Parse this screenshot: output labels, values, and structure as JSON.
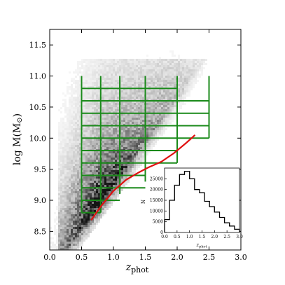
{
  "chart_data": [
    {
      "type": "scatter",
      "title": "",
      "xlabel": "z",
      "xlabel_sub": "phot",
      "ylabel": "log M(M",
      "ylabel_symbol": "⊙",
      "ylabel_close": ")",
      "xlim": [
        0.0,
        3.0
      ],
      "ylim": [
        8.2,
        11.75
      ],
      "xticks": [
        "0.0",
        "0.5",
        "1.0",
        "1.5",
        "2.0",
        "2.5",
        "3.0"
      ],
      "yticks": [
        "8.5",
        "9.0",
        "9.5",
        "10.0",
        "10.5",
        "11.0",
        "11.5"
      ],
      "grid": false,
      "density_description": "grayscale 2D histogram of galaxies, densest near z 0.3-1.2 and log M 8.3-9.5",
      "bin_grid": {
        "color": "#1a8a1a",
        "vertical_x": [
          0.5,
          0.8,
          1.1,
          1.5,
          2.0,
          2.5
        ],
        "vertical_ylow": [
          8.8,
          8.8,
          9.1,
          9.3,
          9.6,
          10.0
        ],
        "vertical_yhigh": 11.0,
        "horizontal_y": [
          8.8,
          9.0,
          9.2,
          9.4,
          9.6,
          9.8,
          10.0,
          10.2,
          10.4,
          10.6,
          10.8
        ],
        "horizontal_xhigh": [
          0.8,
          1.1,
          1.5,
          1.5,
          2.0,
          2.0,
          2.5,
          2.5,
          2.5,
          2.5,
          2.0
        ]
      },
      "series": [
        {
          "color": "#e01010",
          "x": [
            0.65,
            0.8,
            1.0,
            1.2,
            1.4,
            1.55,
            1.75,
            1.95,
            2.15,
            2.28
          ],
          "y": [
            8.68,
            8.9,
            9.15,
            9.33,
            9.45,
            9.53,
            9.62,
            9.76,
            9.93,
            10.05
          ]
        }
      ]
    },
    {
      "type": "histogram",
      "title": "",
      "xlabel": "z",
      "xlabel_sub": "phot",
      "ylabel": "N",
      "xlim": [
        0.0,
        3.0
      ],
      "ylim": [
        0,
        30000
      ],
      "xticks": [
        "0.0",
        "0.5",
        "1.0",
        "1.5",
        "2.0",
        "2.5",
        "3.0"
      ],
      "yticks": [
        "0",
        "5000",
        "10000",
        "15000",
        "20000",
        "25000"
      ],
      "bin_edges": [
        0.0,
        0.2,
        0.4,
        0.6,
        0.8,
        1.0,
        1.2,
        1.4,
        1.6,
        1.8,
        2.0,
        2.2,
        2.4,
        2.6,
        2.8,
        3.0
      ],
      "counts": [
        6000,
        15000,
        22000,
        27000,
        28500,
        25000,
        20000,
        18500,
        14500,
        12000,
        9500,
        7000,
        4500,
        3000,
        1500
      ]
    }
  ]
}
